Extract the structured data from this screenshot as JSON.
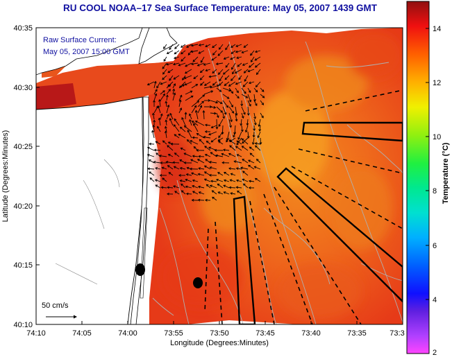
{
  "title": "RU COOL  NOAA–17  Sea Surface Temperature:  May 05, 2007 1439 GMT",
  "annotation": {
    "line1": "Raw Surface Current:",
    "line2": "May 05, 2007 15:00 GMT"
  },
  "scale_label": "50 cm/s",
  "axes": {
    "xlabel": "Longitude (Degrees:Minutes)",
    "ylabel": "Latitude (Degrees:Minutes)",
    "xticks": [
      "74:10",
      "74:05",
      "74:00",
      "73:55",
      "73:50",
      "73:45",
      "73:40",
      "73:35",
      "73:3"
    ],
    "yticks": [
      "40:35",
      "40:30",
      "40:25",
      "40:20",
      "40:15",
      "40:10"
    ]
  },
  "colorbar": {
    "label": "Temperature (°C)",
    "ticks": [
      "14",
      "12",
      "10",
      "8",
      "6",
      "4",
      "2"
    ],
    "range": [
      2,
      15
    ]
  },
  "colors": {
    "title": "#1010a0",
    "sst_warm": "#e83a18",
    "sst_hot": "#c41818",
    "sst_cool": "#f79a1c"
  }
}
